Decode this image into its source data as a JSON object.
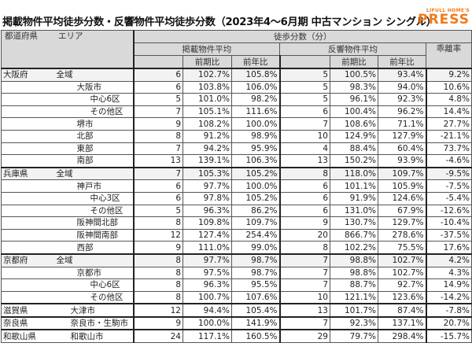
{
  "title": "掲載物件平均徒歩分数・反響物件平均徒歩分数（2023年4～6月期 中古マンション シングル）",
  "logo": {
    "small": "LIFULL HOME'S",
    "big": "PRESS",
    "color": "#f07a1a"
  },
  "header": {
    "pref": "都道府県",
    "area": "エリア",
    "walk": "徒歩分数（分）",
    "listed": "掲載物件平均",
    "response": "反響物件平均",
    "gap": "乖離率",
    "qoq": "前期比",
    "yoy": "前年比"
  },
  "rows": [
    {
      "pref": "大阪府",
      "area": "全域",
      "level": 0,
      "v": [
        "6",
        "102.7%",
        "105.8%",
        "5",
        "100.5%",
        "93.4%",
        "9.2%"
      ]
    },
    {
      "pref": "",
      "area": "大阪市",
      "level": 1,
      "v": [
        "6",
        "103.8%",
        "106.0%",
        "5",
        "98.3%",
        "94.0%",
        "10.6%"
      ]
    },
    {
      "pref": "",
      "area": "中心6区",
      "level": 2,
      "v": [
        "5",
        "101.0%",
        "98.2%",
        "5",
        "96.1%",
        "92.3%",
        "4.8%"
      ]
    },
    {
      "pref": "",
      "area": "その他区",
      "level": 2,
      "v": [
        "7",
        "105.1%",
        "111.6%",
        "6",
        "100.4%",
        "96.2%",
        "14.4%"
      ]
    },
    {
      "pref": "",
      "area": "堺市",
      "level": 1,
      "v": [
        "9",
        "108.2%",
        "100.0%",
        "7",
        "108.6%",
        "71.1%",
        "27.7%"
      ]
    },
    {
      "pref": "",
      "area": "北部",
      "level": 1,
      "v": [
        "8",
        "91.2%",
        "98.9%",
        "10",
        "124.9%",
        "127.9%",
        "-21.1%"
      ]
    },
    {
      "pref": "",
      "area": "東部",
      "level": 1,
      "v": [
        "7",
        "94.2%",
        "95.9%",
        "4",
        "88.4%",
        "60.4%",
        "73.7%"
      ]
    },
    {
      "pref": "",
      "area": "南部",
      "level": 1,
      "v": [
        "13",
        "139.1%",
        "106.3%",
        "13",
        "150.2%",
        "93.9%",
        "-4.6%"
      ]
    },
    {
      "pref": "兵庫県",
      "area": "全域",
      "level": 0,
      "v": [
        "7",
        "105.3%",
        "105.2%",
        "8",
        "118.0%",
        "109.7%",
        "-9.5%"
      ]
    },
    {
      "pref": "",
      "area": "神戸市",
      "level": 1,
      "v": [
        "6",
        "97.7%",
        "100.0%",
        "6",
        "101.1%",
        "105.9%",
        "-7.5%"
      ]
    },
    {
      "pref": "",
      "area": "中心3区",
      "level": 2,
      "v": [
        "6",
        "97.8%",
        "105.2%",
        "6",
        "91.9%",
        "124.6%",
        "-5.4%"
      ]
    },
    {
      "pref": "",
      "area": "その他区",
      "level": 2,
      "v": [
        "5",
        "96.3%",
        "86.2%",
        "6",
        "131.0%",
        "67.9%",
        "-12.6%"
      ]
    },
    {
      "pref": "",
      "area": "阪神間北部",
      "level": 1,
      "v": [
        "8",
        "109.8%",
        "109.7%",
        "9",
        "130.7%",
        "129.7%",
        "-10.4%"
      ]
    },
    {
      "pref": "",
      "area": "阪神間南部",
      "level": 1,
      "v": [
        "12",
        "127.4%",
        "254.4%",
        "20",
        "866.7%",
        "278.6%",
        "-37.5%"
      ]
    },
    {
      "pref": "",
      "area": "西部",
      "level": 1,
      "v": [
        "9",
        "111.0%",
        "99.0%",
        "8",
        "102.2%",
        "75.5%",
        "17.6%"
      ]
    },
    {
      "pref": "京都府",
      "area": "全域",
      "level": 0,
      "v": [
        "8",
        "97.7%",
        "98.7%",
        "7",
        "98.8%",
        "102.7%",
        "4.2%"
      ]
    },
    {
      "pref": "",
      "area": "京都市",
      "level": 1,
      "v": [
        "8",
        "97.5%",
        "98.7%",
        "7",
        "98.8%",
        "102.7%",
        "4.3%"
      ]
    },
    {
      "pref": "",
      "area": "中心6区",
      "level": 2,
      "v": [
        "8",
        "96.3%",
        "95.5%",
        "7",
        "88.7%",
        "92.7%",
        "14.9%"
      ]
    },
    {
      "pref": "",
      "area": "その他区",
      "level": 2,
      "v": [
        "8",
        "100.7%",
        "107.6%",
        "10",
        "121.1%",
        "123.6%",
        "-14.2%"
      ]
    },
    {
      "pref": "滋賀県",
      "area": "大津市",
      "level": 3,
      "v": [
        "12",
        "94.4%",
        "105.4%",
        "13",
        "101.7%",
        "87.4%",
        "-7.8%"
      ]
    },
    {
      "pref": "奈良県",
      "area": "奈良市・生駒市",
      "level": 3,
      "v": [
        "9",
        "100.0%",
        "141.9%",
        "7",
        "92.3%",
        "137.1%",
        "20.7%"
      ]
    },
    {
      "pref": "和歌山県",
      "area": "和歌山市",
      "level": 3,
      "v": [
        "24",
        "117.1%",
        "160.5%",
        "29",
        "79.7%",
        "298.4%",
        "-15.7%"
      ]
    }
  ]
}
